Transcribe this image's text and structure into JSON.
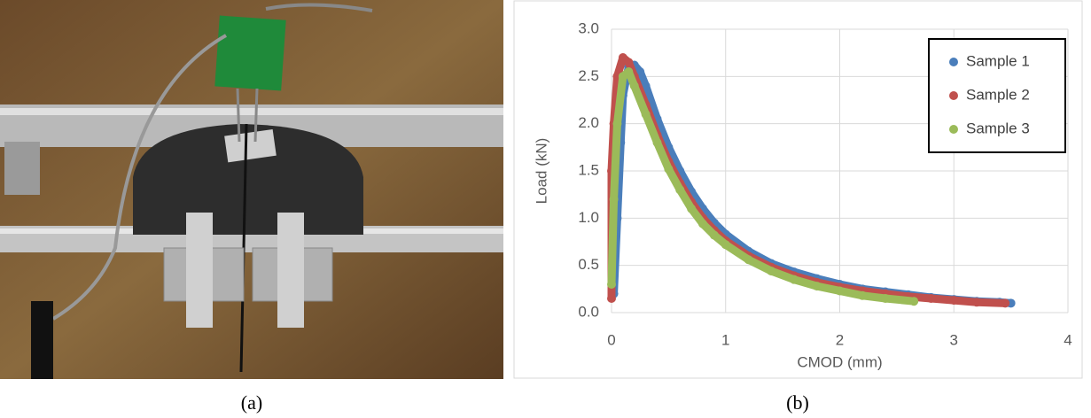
{
  "captions": [
    "(a)",
    "(b)"
  ],
  "chart_data": {
    "type": "scatter",
    "x_label": "CMOD (mm)",
    "y_label": "Load (kN)",
    "xlim": [
      0,
      4
    ],
    "xticks": [
      0,
      1,
      2,
      3,
      4
    ],
    "ylim": [
      0,
      3
    ],
    "yticks": [
      {
        "value": 0,
        "label": "0.0"
      },
      0.5,
      {
        "value": 1,
        "label": "1.0"
      },
      1.5,
      {
        "value": 2,
        "label": "2.0"
      },
      2.5,
      {
        "value": 3,
        "label": "3.0"
      }
    ],
    "grid": true,
    "legend": "upper right",
    "series": [
      {
        "name": "Sample 1",
        "color": "#4a7ebb",
        "x": [
          0.02,
          0.05,
          0.08,
          0.1,
          0.15,
          0.2,
          0.25,
          0.3,
          0.4,
          0.5,
          0.6,
          0.7,
          0.8,
          0.9,
          1.0,
          1.2,
          1.4,
          1.6,
          1.8,
          2.0,
          2.2,
          2.4,
          2.6,
          2.8,
          3.0,
          3.2,
          3.4,
          3.5
        ],
        "values": [
          0.2,
          1.0,
          1.8,
          2.3,
          2.6,
          2.62,
          2.55,
          2.4,
          2.05,
          1.75,
          1.5,
          1.28,
          1.1,
          0.95,
          0.83,
          0.65,
          0.52,
          0.43,
          0.36,
          0.3,
          0.25,
          0.22,
          0.19,
          0.16,
          0.14,
          0.12,
          0.11,
          0.1
        ]
      },
      {
        "name": "Sample 2",
        "color": "#c0504d",
        "x": [
          0.0,
          0.0,
          0.02,
          0.05,
          0.1,
          0.15,
          0.2,
          0.3,
          0.4,
          0.5,
          0.6,
          0.7,
          0.8,
          0.9,
          1.0,
          1.2,
          1.4,
          1.6,
          1.8,
          2.0,
          2.2,
          2.4,
          2.6,
          2.8,
          3.0,
          3.2,
          3.45
        ],
        "values": [
          0.15,
          1.5,
          2.0,
          2.5,
          2.7,
          2.65,
          2.5,
          2.2,
          1.88,
          1.6,
          1.37,
          1.17,
          1.0,
          0.87,
          0.76,
          0.6,
          0.48,
          0.39,
          0.32,
          0.27,
          0.23,
          0.2,
          0.17,
          0.15,
          0.13,
          0.11,
          0.1
        ]
      },
      {
        "name": "Sample 3",
        "color": "#9bbb59",
        "x": [
          0.0,
          0.02,
          0.05,
          0.1,
          0.15,
          0.2,
          0.3,
          0.4,
          0.5,
          0.6,
          0.7,
          0.8,
          0.9,
          1.0,
          1.2,
          1.4,
          1.6,
          1.8,
          2.0,
          2.2,
          2.4,
          2.65
        ],
        "values": [
          0.3,
          1.2,
          2.0,
          2.5,
          2.55,
          2.4,
          2.1,
          1.8,
          1.52,
          1.3,
          1.1,
          0.94,
          0.82,
          0.72,
          0.56,
          0.44,
          0.35,
          0.28,
          0.23,
          0.18,
          0.15,
          0.12
        ]
      }
    ]
  }
}
